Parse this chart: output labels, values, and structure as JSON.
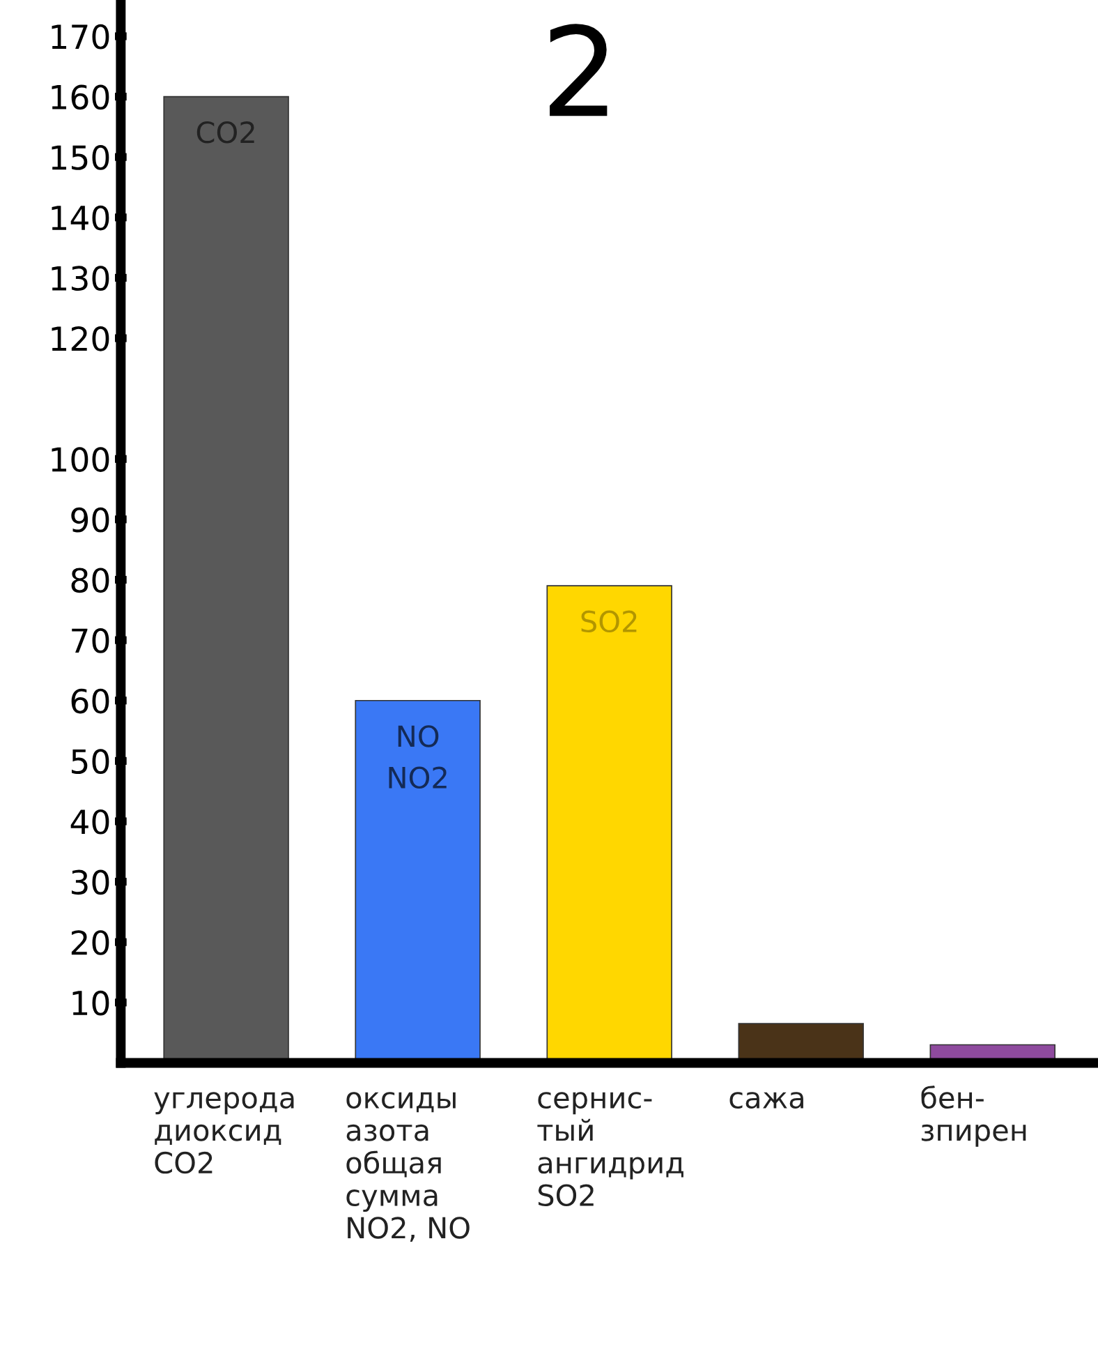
{
  "chart_data": {
    "type": "bar",
    "title": "2",
    "categories": [
      "углерода\nдиоксид\nCO2",
      "оксиды\nазота\nобщая\nсумма\nNO2, NO",
      "сернис-\nтый\nангидрид\nSO2",
      "сажа",
      "бен-\nзпирен"
    ],
    "values": [
      160,
      60,
      79,
      6.5,
      3
    ],
    "colors": [
      "#595959",
      "#3a78f5",
      "#ffd700",
      "#4a3318",
      "#8e4a9e"
    ],
    "annotations": [
      "CO2",
      "NO\nNO2",
      "SO2"
    ],
    "ylim": [
      0,
      176
    ],
    "yticks": [
      10,
      20,
      30,
      40,
      50,
      60,
      70,
      80,
      90,
      100,
      120,
      130,
      140,
      150,
      160,
      170
    ],
    "grid": false
  }
}
